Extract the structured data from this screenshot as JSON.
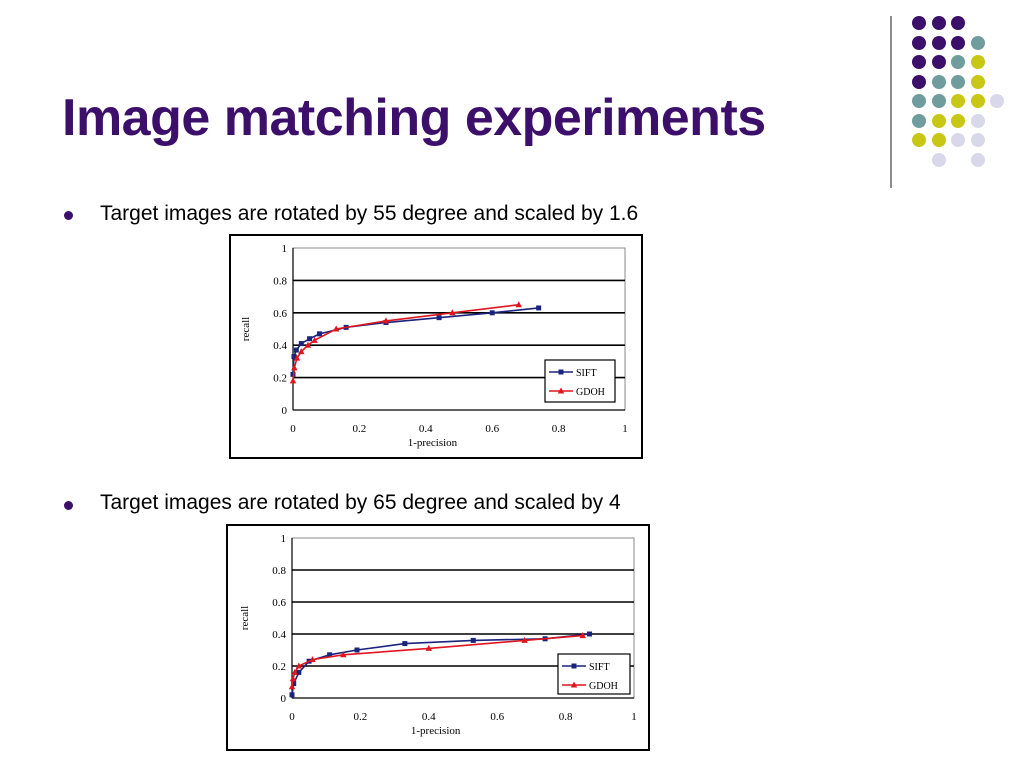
{
  "slide": {
    "title": "Image matching experiments",
    "colors": {
      "title": "#3c0f6a",
      "dot_purple": "#3c0f6a",
      "dot_teal": "#6f9c9c",
      "dot_yellow": "#c9c716",
      "dot_lavender": "#d8d8ea"
    },
    "decoration_dots": [
      [
        "purple",
        "purple",
        "purple",
        null
      ],
      [
        "purple",
        "purple",
        "purple",
        "teal"
      ],
      [
        "purple",
        "purple",
        "teal",
        "yellow"
      ],
      [
        "purple",
        "teal",
        "teal",
        "yellow"
      ],
      [
        "teal",
        "teal",
        "yellow",
        "yellow",
        "lavender"
      ],
      [
        "teal",
        "yellow",
        "yellow",
        "lavender"
      ],
      [
        "yellow",
        "yellow",
        "lavender",
        "lavender"
      ],
      [
        null,
        "lavender",
        null,
        "lavender"
      ]
    ]
  },
  "bullets": [
    {
      "text": "Target images are rotated by 55 degree and scaled by 1.6"
    },
    {
      "text": "Target images are rotated by 65 degree and scaled by 4"
    }
  ],
  "chart_data": [
    {
      "type": "line",
      "xlabel": "1-precision",
      "ylabel": "recall",
      "xlim": [
        0,
        1
      ],
      "ylim": [
        0,
        1
      ],
      "xticks": [
        "0",
        "0.2",
        "0.4",
        "0.6",
        "0.8",
        "1"
      ],
      "yticks": [
        "0",
        "0.2",
        "0.4",
        "0.6",
        "0.8",
        "1"
      ],
      "grid": "horizontal",
      "legend": "bottom-right",
      "series": [
        {
          "name": "SIFT",
          "color": "#1a237e",
          "marker": "square",
          "points": [
            [
              0,
              0.22
            ],
            [
              0.003,
              0.33
            ],
            [
              0.01,
              0.37
            ],
            [
              0.025,
              0.41
            ],
            [
              0.05,
              0.44
            ],
            [
              0.08,
              0.47
            ],
            [
              0.16,
              0.51
            ],
            [
              0.28,
              0.54
            ],
            [
              0.44,
              0.57
            ],
            [
              0.6,
              0.6
            ],
            [
              0.74,
              0.63
            ]
          ]
        },
        {
          "name": "GDOH",
          "color": "#e0161e",
          "marker": "triangle",
          "points": [
            [
              0,
              0.18
            ],
            [
              0.004,
              0.26
            ],
            [
              0.012,
              0.32
            ],
            [
              0.025,
              0.36
            ],
            [
              0.045,
              0.4
            ],
            [
              0.065,
              0.43
            ],
            [
              0.13,
              0.5
            ],
            [
              0.28,
              0.55
            ],
            [
              0.48,
              0.6
            ],
            [
              0.68,
              0.65
            ]
          ]
        }
      ]
    },
    {
      "type": "line",
      "xlabel": "1-precision",
      "ylabel": "recall",
      "xlim": [
        0,
        1
      ],
      "ylim": [
        0,
        1
      ],
      "xticks": [
        "0",
        "0.2",
        "0.4",
        "0.6",
        "0.8",
        "1"
      ],
      "yticks": [
        "0",
        "0.2",
        "0.4",
        "0.6",
        "0.8",
        "1"
      ],
      "grid": "horizontal",
      "legend": "bottom-right",
      "series": [
        {
          "name": "SIFT",
          "color": "#1a237e",
          "marker": "square",
          "points": [
            [
              0,
              0.02
            ],
            [
              0.005,
              0.09
            ],
            [
              0.02,
              0.16
            ],
            [
              0.05,
              0.23
            ],
            [
              0.11,
              0.27
            ],
            [
              0.19,
              0.3
            ],
            [
              0.33,
              0.34
            ],
            [
              0.53,
              0.36
            ],
            [
              0.74,
              0.37
            ],
            [
              0.87,
              0.4
            ]
          ]
        },
        {
          "name": "GDOH",
          "color": "#e0161e",
          "marker": "triangle",
          "points": [
            [
              0,
              0.07
            ],
            [
              0.003,
              0.12
            ],
            [
              0.008,
              0.16
            ],
            [
              0.02,
              0.2
            ],
            [
              0.06,
              0.24
            ],
            [
              0.15,
              0.27
            ],
            [
              0.4,
              0.31
            ],
            [
              0.68,
              0.36
            ],
            [
              0.85,
              0.39
            ]
          ]
        }
      ]
    }
  ]
}
